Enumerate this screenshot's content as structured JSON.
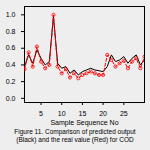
{
  "chart_data": {
    "type": "line",
    "xlabel": "Sample Sequence No",
    "caption": "Figure 11. Comparison of predicted output\n(Black) and the real value (Red) for COD",
    "x": [
      1,
      2,
      3,
      4,
      5,
      6,
      7,
      8,
      9,
      10,
      11,
      12,
      13,
      14,
      15,
      16,
      17,
      18,
      19,
      20,
      21,
      22,
      23,
      24,
      25,
      26,
      27,
      28,
      29,
      30
    ],
    "series": [
      {
        "color": "#000000",
        "line_style": "solid",
        "values": [
          0.38,
          0.52,
          0.42,
          0.58,
          0.48,
          0.4,
          0.44,
          0.98,
          0.42,
          0.36,
          0.38,
          0.3,
          0.34,
          0.28,
          0.32,
          0.34,
          0.36,
          0.34,
          0.33,
          0.32,
          0.38,
          0.52,
          0.44,
          0.46,
          0.5,
          0.42,
          0.48,
          0.52,
          0.4,
          0.46
        ]
      },
      {
        "color": "#ff0000",
        "line_style": "dashed",
        "marker": "circle",
        "values": [
          0.35,
          0.55,
          0.38,
          0.62,
          0.44,
          0.36,
          0.4,
          1.0,
          0.38,
          0.3,
          0.35,
          0.25,
          0.3,
          0.24,
          0.28,
          0.3,
          0.32,
          0.3,
          0.28,
          0.28,
          0.52,
          0.46,
          0.38,
          0.42,
          0.45,
          0.36,
          0.44,
          0.48,
          0.36,
          0.5
        ]
      }
    ],
    "xlim": [
      1,
      30
    ],
    "xticks": [
      5,
      10,
      15,
      20,
      25
    ],
    "ylim": [
      -0.05,
      1.1
    ],
    "yticks": [
      {
        "value": 0,
        "label": "0.0"
      },
      {
        "value": 0.2,
        "label": "0.2"
      },
      {
        "value": 0.4,
        "label": "0.4"
      },
      {
        "value": 0.6,
        "label": "0.6"
      },
      {
        "value": 0.8,
        "label": "0.8"
      },
      {
        "value": 1,
        "label": "1.0"
      }
    ],
    "grid": false
  }
}
